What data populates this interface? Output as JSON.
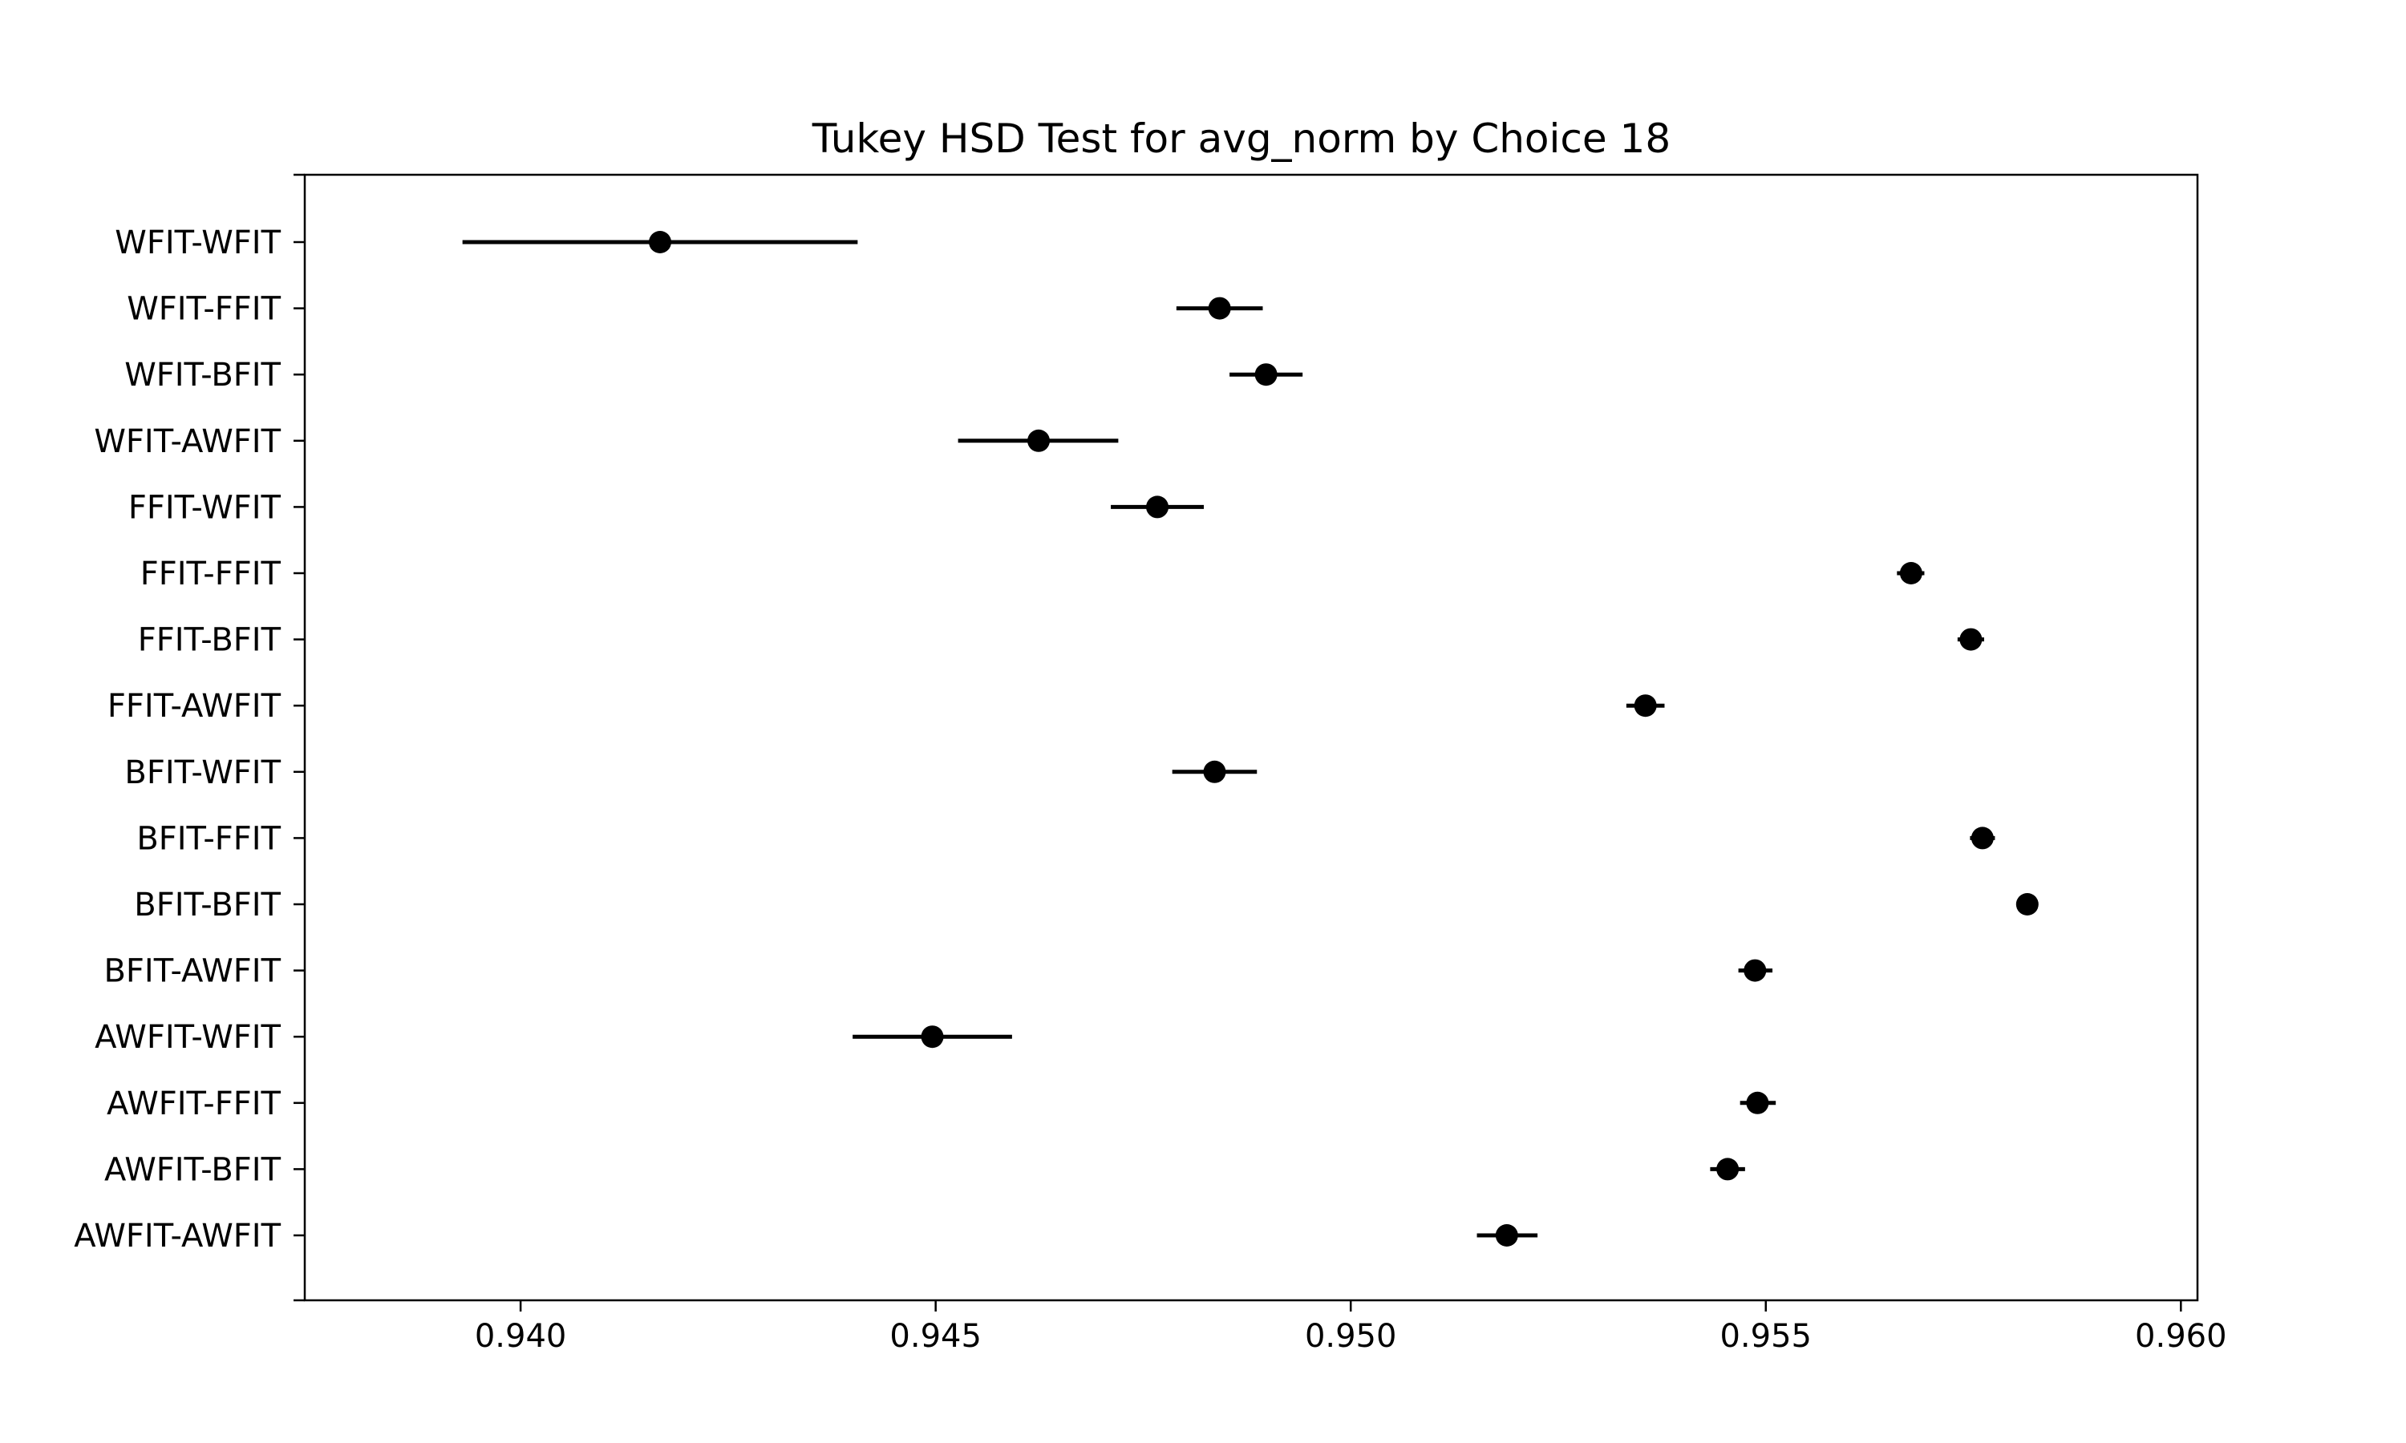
{
  "chart_data": {
    "type": "scatter",
    "title": "Tukey HSD Test for avg_norm by Choice 18",
    "xlabel": "",
    "ylabel": "",
    "xlim": [
      0.9374,
      0.9602
    ],
    "xticks": [
      0.94,
      0.945,
      0.95,
      0.955,
      0.96
    ],
    "xtick_labels": [
      "0.940",
      "0.945",
      "0.950",
      "0.955",
      "0.960"
    ],
    "grid": false,
    "groups": [
      {
        "label": "WFIT-WFIT",
        "mean": 0.94168,
        "lower": 0.9393,
        "upper": 0.94406
      },
      {
        "label": "WFIT-FFIT",
        "mean": 0.94842,
        "lower": 0.9479,
        "upper": 0.94894
      },
      {
        "label": "WFIT-BFIT",
        "mean": 0.94898,
        "lower": 0.94854,
        "upper": 0.94942
      },
      {
        "label": "WFIT-AWFIT",
        "mean": 0.94624,
        "lower": 0.94527,
        "upper": 0.9472
      },
      {
        "label": "FFIT-WFIT",
        "mean": 0.94767,
        "lower": 0.94711,
        "upper": 0.94823
      },
      {
        "label": "FFIT-FFIT",
        "mean": 0.95675,
        "lower": 0.95658,
        "upper": 0.95691
      },
      {
        "label": "FFIT-BFIT",
        "mean": 0.95747,
        "lower": 0.95731,
        "upper": 0.95763
      },
      {
        "label": "FFIT-AWFIT",
        "mean": 0.95355,
        "lower": 0.95332,
        "upper": 0.95378
      },
      {
        "label": "BFIT-WFIT",
        "mean": 0.94836,
        "lower": 0.94785,
        "upper": 0.94887
      },
      {
        "label": "BFIT-FFIT",
        "mean": 0.95761,
        "lower": 0.95746,
        "upper": 0.95776
      },
      {
        "label": "BFIT-BFIT",
        "mean": 0.95815,
        "lower": 0.95804,
        "upper": 0.95825
      },
      {
        "label": "BFIT-AWFIT",
        "mean": 0.95487,
        "lower": 0.95467,
        "upper": 0.95508
      },
      {
        "label": "AWFIT-WFIT",
        "mean": 0.94496,
        "lower": 0.944,
        "upper": 0.94592
      },
      {
        "label": "AWFIT-FFIT",
        "mean": 0.9549,
        "lower": 0.95469,
        "upper": 0.95512
      },
      {
        "label": "AWFIT-BFIT",
        "mean": 0.95454,
        "lower": 0.95433,
        "upper": 0.95475
      },
      {
        "label": "AWFIT-AWFIT",
        "mean": 0.95188,
        "lower": 0.95152,
        "upper": 0.95225
      }
    ],
    "colors": {
      "marker": "#000000",
      "errorbar": "#000000",
      "axes": "#000000",
      "background": "#ffffff"
    }
  }
}
